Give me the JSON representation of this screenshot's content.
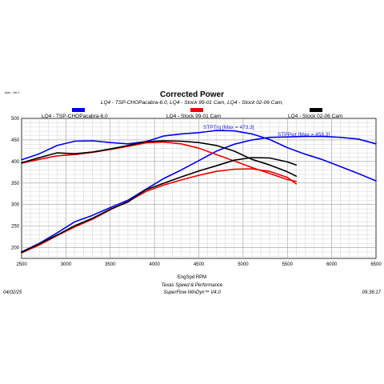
{
  "chart_data": {
    "type": "line",
    "title": "Corrected Power",
    "subtitle": "LQ4 - TSP-CHOPacabra-6.0, LQ4 - Stock 99-01 Cam, LQ4 - Stock 02-06 Cam,",
    "corner_note": "Auto - Ver.1",
    "xlabel": "EngSpd RPM",
    "xlim": [
      2500,
      6500
    ],
    "ylim": [
      175,
      500
    ],
    "x_ticks": [
      "2500",
      "3000",
      "3500",
      "4000",
      "4500",
      "5000",
      "5500",
      "6000",
      "6500"
    ],
    "y_ticks": [
      "200",
      "250",
      "300",
      "350",
      "400",
      "450",
      "500"
    ],
    "grid": true,
    "legend": [
      {
        "name": "LQ4 - TSP-CHOPacabra-6.0",
        "color": "#0000ee"
      },
      {
        "name": "LQ4 - Stock 99-01 Cam",
        "color": "#ee0000"
      },
      {
        "name": "LQ4 - Stock 02-06 Cam",
        "color": "#000000"
      }
    ],
    "annotations": [
      {
        "text": "STPTrq [Max = 473.3]",
        "color": "#1f1fd8"
      },
      {
        "text": "STPPwr [Max = 458.3]",
        "color": "#1f1fd8"
      }
    ],
    "series": [
      {
        "name": "LQ4 - TSP-CHOPacabra-6.0",
        "metric": "STPTrq",
        "color": "#0000ee",
        "x": [
          2500,
          2700,
          2900,
          3100,
          3300,
          3500,
          3700,
          3900,
          4100,
          4300,
          4500,
          4700,
          4900,
          5100,
          5300,
          5500,
          5700,
          5900,
          6100,
          6300,
          6500
        ],
        "y": [
          404,
          418,
          437,
          447,
          448,
          444,
          441,
          446,
          459,
          464,
          467,
          472,
          471,
          464,
          451,
          432,
          417,
          404,
          388,
          372,
          355
        ]
      },
      {
        "name": "LQ4 - TSP-CHOPacabra-6.0",
        "metric": "STPPwr",
        "color": "#0000ee",
        "x": [
          2500,
          2700,
          2900,
          3100,
          3300,
          3500,
          3700,
          3900,
          4100,
          4300,
          4500,
          4700,
          4900,
          5100,
          5300,
          5500,
          5700,
          5900,
          6100,
          6300,
          6500
        ],
        "y": [
          190,
          210,
          234,
          260,
          275,
          293,
          310,
          335,
          360,
          380,
          402,
          424,
          440,
          450,
          456,
          457,
          458,
          458,
          456,
          452,
          441
        ]
      },
      {
        "name": "LQ4 - Stock 99-01 Cam",
        "metric": "STPTrq",
        "color": "#ee0000",
        "x": [
          2500,
          2700,
          2900,
          3100,
          3300,
          3500,
          3700,
          3900,
          4100,
          4300,
          4500,
          4700,
          4900,
          5100,
          5300,
          5500,
          5600
        ],
        "y": [
          396,
          405,
          413,
          416,
          421,
          428,
          435,
          443,
          445,
          441,
          431,
          416,
          401,
          386,
          372,
          358,
          354
        ]
      },
      {
        "name": "LQ4 - Stock 99-01 Cam",
        "metric": "STPPwr",
        "color": "#ee0000",
        "x": [
          2500,
          2700,
          2900,
          3100,
          3300,
          3500,
          3700,
          3900,
          4100,
          4300,
          4500,
          4700,
          4900,
          5100,
          5300,
          5500,
          5600
        ],
        "y": [
          188,
          206,
          228,
          248,
          266,
          288,
          307,
          330,
          345,
          357,
          368,
          377,
          382,
          383,
          377,
          363,
          348
        ]
      },
      {
        "name": "LQ4 - Stock 02-06 Cam",
        "metric": "STPTrq",
        "color": "#000000",
        "x": [
          2500,
          2700,
          2900,
          3100,
          3300,
          3500,
          3700,
          3900,
          4100,
          4300,
          4500,
          4700,
          4900,
          5100,
          5300,
          5500,
          5600
        ],
        "y": [
          397,
          409,
          420,
          418,
          422,
          429,
          437,
          446,
          448,
          447,
          444,
          437,
          424,
          405,
          392,
          376,
          366
        ]
      },
      {
        "name": "LQ4 - Stock 02-06 Cam",
        "metric": "STPPwr",
        "color": "#000000",
        "x": [
          2500,
          2700,
          2900,
          3100,
          3300,
          3500,
          3700,
          3900,
          4100,
          4300,
          4500,
          4700,
          4900,
          5100,
          5300,
          5500,
          5600
        ],
        "y": [
          189,
          209,
          229,
          251,
          268,
          289,
          306,
          334,
          349,
          364,
          378,
          390,
          403,
          409,
          408,
          399,
          392
        ]
      }
    ]
  },
  "footer": {
    "date": "04/02/25",
    "company": "Texas Speed & Performance",
    "software": "SuperFlow WinDyn™ V4.0",
    "time": "09:36:17"
  }
}
